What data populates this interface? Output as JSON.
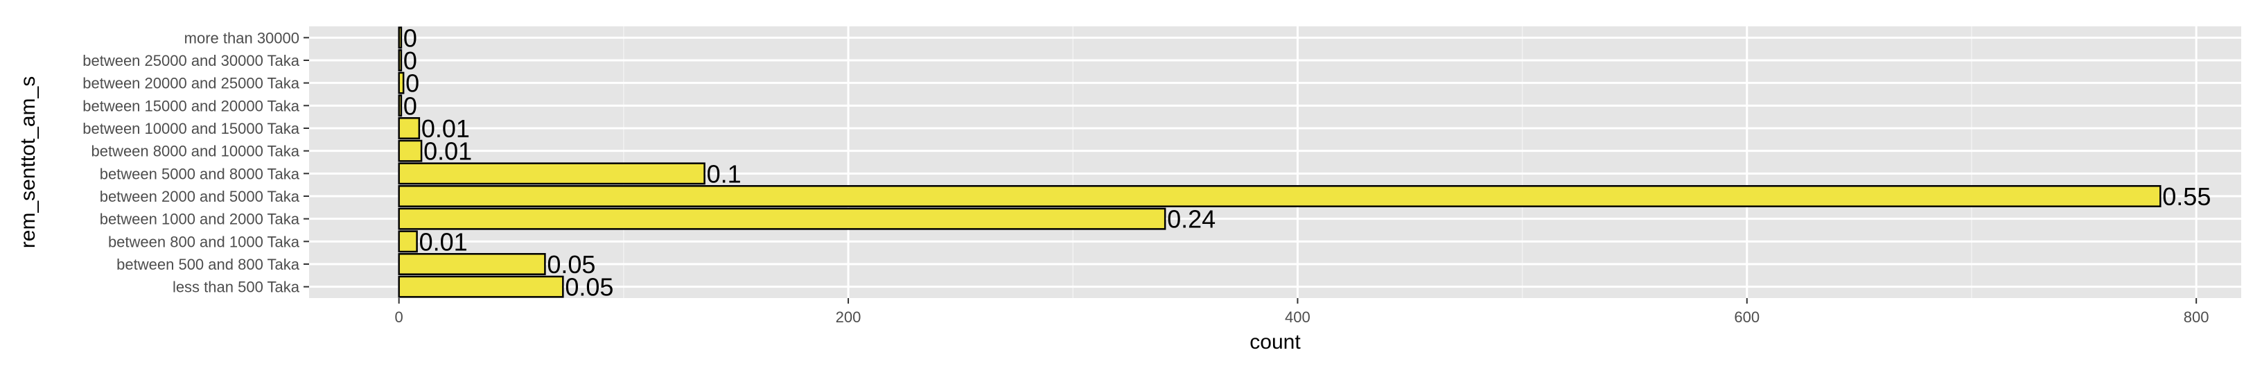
{
  "chart_data": {
    "type": "bar",
    "orientation": "horizontal",
    "xlabel": "count",
    "ylabel": "rem_senttot_am_s",
    "xlim": [
      -40,
      820
    ],
    "x_ticks": [
      0,
      200,
      400,
      600,
      800
    ],
    "x_tick_labels": [
      "0",
      "200",
      "400",
      "600",
      "800"
    ],
    "grid": true,
    "categories": [
      "less than 500 Taka",
      "between 500 and 800 Taka",
      "between 800 and 1000 Taka",
      "between 1000 and 2000 Taka",
      "between 2000 and 5000 Taka",
      "between 5000 and 8000 Taka",
      "between 8000 and 10000 Taka",
      "between 10000 and 15000 Taka",
      "between 15000 and 20000 Taka",
      "between 20000 and 25000 Taka",
      "between 25000 and 30000 Taka",
      "more than 30000"
    ],
    "values": [
      73,
      65,
      8,
      341,
      784,
      136,
      10,
      9,
      1,
      2,
      1,
      1
    ],
    "data_labels": [
      "0.05",
      "0.05",
      "0.01",
      "0.24",
      "0.55",
      "0.1",
      "0.01",
      "0.01",
      "0",
      "0",
      "0",
      "0"
    ],
    "colors": {
      "bar_fill": "#f0e442",
      "bar_stroke": "#000000",
      "panel_bg": "#e5e5e5",
      "grid_major": "#ffffff",
      "grid_minor": "#f2f2f2"
    }
  }
}
